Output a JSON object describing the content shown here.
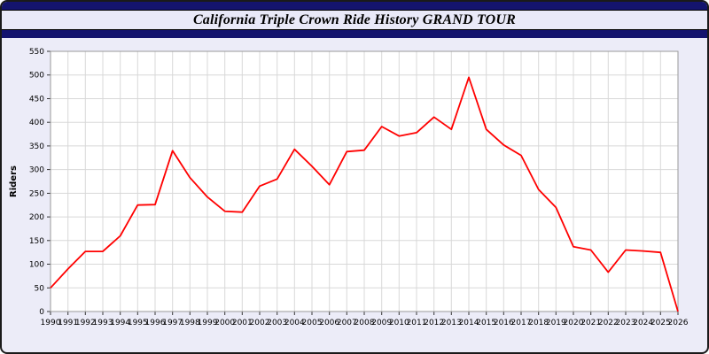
{
  "header": {
    "title": "California Triple Crown Ride History GRAND TOUR"
  },
  "colors": {
    "navy": "#14146e",
    "page_bg": "#ececf8",
    "band_bg": "#e9e9f8",
    "grid": "#d8d8d8",
    "line": "#ff0000"
  },
  "chart_data": {
    "type": "line",
    "title": "California Triple Crown Ride History GRAND TOUR",
    "xlabel": "",
    "ylabel": "Riders",
    "ylim": [
      0,
      550
    ],
    "ytick_step": 50,
    "grid": true,
    "legend": "none",
    "line_color": "#ff0000",
    "categories": [
      1990,
      1991,
      1992,
      1993,
      1994,
      1995,
      1996,
      1997,
      1998,
      1999,
      2000,
      2001,
      2002,
      2003,
      2004,
      2005,
      2006,
      2007,
      2008,
      2009,
      2010,
      2011,
      2012,
      2013,
      2014,
      2015,
      2016,
      2017,
      2018,
      2019,
      2020,
      2021,
      2022,
      2023,
      2024,
      2025,
      2026
    ],
    "values": [
      50,
      90,
      127,
      127,
      160,
      225,
      226,
      340,
      283,
      242,
      212,
      210,
      265,
      280,
      343,
      307,
      268,
      338,
      341,
      391,
      371,
      378,
      411,
      385,
      495,
      385,
      352,
      330,
      258,
      220,
      137,
      130,
      83,
      130,
      128,
      125,
      0
    ]
  }
}
